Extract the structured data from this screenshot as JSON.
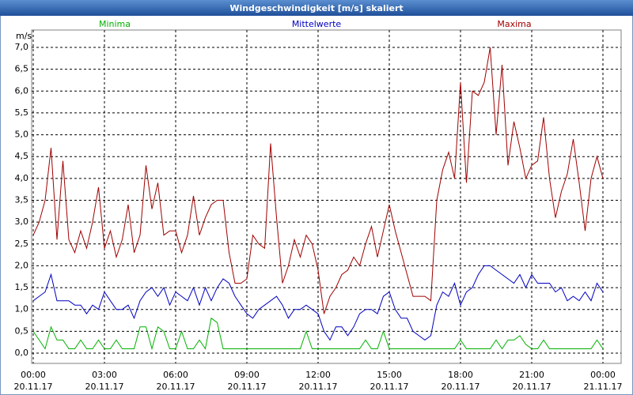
{
  "chart_data": {
    "type": "line",
    "title": "Windgeschwindigkeit [m/s] skaliert",
    "y_label": "m/s",
    "x": [
      0,
      0.25,
      0.5,
      0.75,
      1,
      1.25,
      1.5,
      1.75,
      2,
      2.25,
      2.5,
      2.75,
      3,
      3.25,
      3.5,
      3.75,
      4,
      4.25,
      4.5,
      4.75,
      5,
      5.25,
      5.5,
      5.75,
      6,
      6.25,
      6.5,
      6.75,
      7,
      7.25,
      7.5,
      7.75,
      8,
      8.25,
      8.5,
      8.75,
      9,
      9.25,
      9.5,
      9.75,
      10,
      10.25,
      10.5,
      10.75,
      11,
      11.25,
      11.5,
      11.75,
      12,
      12.25,
      12.5,
      12.75,
      13,
      13.25,
      13.5,
      13.75,
      14,
      14.25,
      14.5,
      14.75,
      15,
      15.25,
      15.5,
      15.75,
      16,
      16.25,
      16.5,
      16.75,
      17,
      17.25,
      17.5,
      17.75,
      18,
      18.25,
      18.5,
      18.75,
      19,
      19.25,
      19.5,
      19.75,
      20,
      20.25,
      20.5,
      20.75,
      21,
      21.25,
      21.5,
      21.75,
      22,
      22.25,
      22.5,
      22.75,
      23,
      23.25,
      23.5,
      23.75,
      24
    ],
    "series": [
      {
        "name": "Minima",
        "color": "#00b000",
        "values": [
          0.5,
          0.3,
          0.1,
          0.6,
          0.3,
          0.3,
          0.1,
          0.1,
          0.3,
          0.1,
          0.1,
          0.3,
          0.1,
          0.1,
          0.3,
          0.1,
          0.1,
          0.1,
          0.6,
          0.6,
          0.1,
          0.6,
          0.5,
          0.1,
          0.1,
          0.5,
          0.1,
          0.1,
          0.3,
          0.1,
          0.8,
          0.7,
          0.1,
          0.1,
          0.1,
          0.1,
          0.1,
          0.1,
          0.1,
          0.1,
          0.1,
          0.1,
          0.1,
          0.1,
          0.1,
          0.1,
          0.5,
          0.1,
          0.1,
          0.1,
          0.1,
          0.1,
          0.1,
          0.1,
          0.1,
          0.1,
          0.3,
          0.1,
          0.1,
          0.5,
          0.1,
          0.1,
          0.1,
          0.1,
          0.1,
          0.1,
          0.1,
          0.1,
          0.1,
          0.1,
          0.1,
          0.1,
          0.3,
          0.1,
          0.1,
          0.1,
          0.1,
          0.1,
          0.3,
          0.1,
          0.3,
          0.3,
          0.4,
          0.2,
          0.1,
          0.1,
          0.3,
          0.1,
          0.1,
          0.1,
          0.1,
          0.1,
          0.1,
          0.1,
          0.1,
          0.3,
          0.1
        ]
      },
      {
        "name": "Mittelwerte",
        "color": "#0000c0",
        "values": [
          1.2,
          1.3,
          1.4,
          1.8,
          1.2,
          1.2,
          1.2,
          1.1,
          1.1,
          0.9,
          1.1,
          1.0,
          1.4,
          1.2,
          1.0,
          1.0,
          1.1,
          0.8,
          1.2,
          1.4,
          1.5,
          1.3,
          1.5,
          1.1,
          1.4,
          1.3,
          1.2,
          1.5,
          1.1,
          1.5,
          1.2,
          1.5,
          1.7,
          1.6,
          1.3,
          1.1,
          0.9,
          0.8,
          1.0,
          1.1,
          1.2,
          1.3,
          1.1,
          0.8,
          1.0,
          1.0,
          1.1,
          1.0,
          0.9,
          0.5,
          0.3,
          0.6,
          0.6,
          0.4,
          0.6,
          0.9,
          1.0,
          1.0,
          0.9,
          1.3,
          1.4,
          1.0,
          0.8,
          0.8,
          0.5,
          0.4,
          0.3,
          0.4,
          1.1,
          1.4,
          1.3,
          1.6,
          1.1,
          1.4,
          1.5,
          1.8,
          2.0,
          2.0,
          1.9,
          1.8,
          1.7,
          1.6,
          1.8,
          1.5,
          1.8,
          1.6,
          1.6,
          1.6,
          1.4,
          1.5,
          1.2,
          1.3,
          1.2,
          1.4,
          1.2,
          1.6,
          1.4
        ]
      },
      {
        "name": "Maxima",
        "color": "#a00000",
        "values": [
          2.7,
          3.0,
          3.5,
          4.7,
          2.6,
          4.4,
          2.6,
          2.3,
          2.8,
          2.4,
          3.0,
          3.8,
          2.4,
          2.8,
          2.2,
          2.6,
          3.4,
          2.3,
          2.7,
          4.3,
          3.3,
          3.9,
          2.7,
          2.8,
          2.8,
          2.3,
          2.7,
          3.6,
          2.7,
          3.1,
          3.4,
          3.5,
          3.5,
          2.3,
          1.6,
          1.6,
          1.7,
          2.7,
          2.5,
          2.4,
          4.8,
          3.1,
          1.6,
          2.0,
          2.6,
          2.2,
          2.7,
          2.5,
          1.9,
          0.9,
          1.3,
          1.5,
          1.8,
          1.9,
          2.2,
          2.0,
          2.5,
          2.9,
          2.2,
          2.8,
          3.4,
          2.8,
          2.3,
          1.8,
          1.3,
          1.3,
          1.3,
          1.2,
          3.5,
          4.2,
          4.6,
          4.0,
          6.2,
          3.9,
          6.0,
          5.9,
          6.2,
          7.0,
          5.0,
          6.6,
          4.3,
          5.3,
          4.7,
          4.0,
          4.3,
          4.4,
          5.4,
          4.0,
          3.1,
          3.7,
          4.1,
          4.9,
          3.9,
          2.8,
          4.0,
          4.5,
          4.0
        ]
      }
    ],
    "xlim": [
      0,
      24
    ],
    "xticks": [
      {
        "value": 0,
        "label": "00:00",
        "date": "20.11.17"
      },
      {
        "value": 3,
        "label": "03:00",
        "date": "20.11.17"
      },
      {
        "value": 6,
        "label": "06:00",
        "date": "20.11.17"
      },
      {
        "value": 9,
        "label": "09:00",
        "date": "20.11.17"
      },
      {
        "value": 12,
        "label": "12:00",
        "date": "20.11.17"
      },
      {
        "value": 15,
        "label": "15:00",
        "date": "20.11.17"
      },
      {
        "value": 18,
        "label": "18:00",
        "date": "20.11.17"
      },
      {
        "value": 21,
        "label": "21:00",
        "date": "20.11.17"
      },
      {
        "value": 24,
        "label": "00:00",
        "date": "21.11.17"
      }
    ],
    "ylim": [
      0,
      7
    ],
    "yticks": [
      {
        "value": 0,
        "label": "0,0"
      },
      {
        "value": 0.5,
        "label": "0,5"
      },
      {
        "value": 1,
        "label": "1,0"
      },
      {
        "value": 1.5,
        "label": "1,5"
      },
      {
        "value": 2,
        "label": "2,0"
      },
      {
        "value": 2.5,
        "label": "2,5"
      },
      {
        "value": 3,
        "label": "3,0"
      },
      {
        "value": 3.5,
        "label": "3,5"
      },
      {
        "value": 4,
        "label": "4,0"
      },
      {
        "value": 4.5,
        "label": "4,5"
      },
      {
        "value": 5,
        "label": "5,0"
      },
      {
        "value": 5.5,
        "label": "5,5"
      },
      {
        "value": 6,
        "label": "6,0"
      },
      {
        "value": 6.5,
        "label": "6,5"
      },
      {
        "value": 7,
        "label": "7,0"
      }
    ],
    "grid": true
  }
}
